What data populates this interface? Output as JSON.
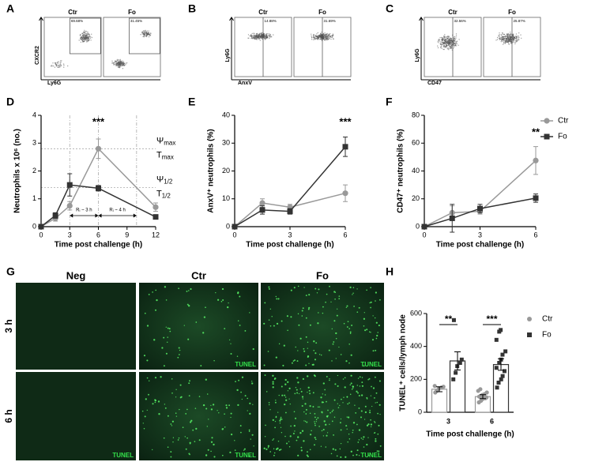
{
  "panel_labels": [
    "A",
    "B",
    "C",
    "D",
    "E",
    "F",
    "G",
    "H"
  ],
  "flow_panels": [
    {
      "groups": [
        "Ctr",
        "Fo"
      ],
      "gates": [
        "69.68%",
        "31.45%"
      ],
      "y_label": "CXCR2",
      "x_label": "Ly6G"
    },
    {
      "groups": [
        "Ctr",
        "Fo"
      ],
      "gates": [
        "14.88%",
        "31.69%"
      ],
      "y_label": "Ly6G",
      "x_label": "AnxV"
    },
    {
      "groups": [
        "Ctr",
        "Fo"
      ],
      "gates": [
        "32.56%",
        "25.87%"
      ],
      "y_label": "Ly6G",
      "x_label": "CD47"
    }
  ],
  "micrographs": {
    "columns": [
      "Neg",
      "Ctr",
      "Fo"
    ],
    "rows": [
      {
        "name": "3 h",
        "tiles": [
          {},
          {
            "label": "TUNEL"
          },
          {
            "label": "TUNEL"
          }
        ]
      },
      {
        "name": "6 h",
        "tiles": [
          {
            "label": "TUNEL"
          },
          {
            "label": "TUNEL"
          },
          {
            "label": "TUNEL"
          }
        ]
      }
    ]
  },
  "chart_data": [
    {
      "type": "line",
      "y_label": "Neutrophils x 10⁶ (no.)",
      "x_label": "Time post challenge (h)",
      "xlim": [
        0,
        12
      ],
      "xticks": [
        0,
        3,
        6,
        9,
        12
      ],
      "ylim": [
        0,
        4
      ],
      "yticks": [
        0,
        1,
        2,
        3,
        4
      ],
      "series": [
        {
          "color": "#999999",
          "marker": "circle",
          "x": [
            0,
            1.5,
            3,
            6,
            12
          ],
          "values": [
            0,
            0.3,
            0.75,
            2.8,
            0.7
          ],
          "errors": [
            0,
            0.1,
            0.15,
            0.35,
            0.15
          ]
        },
        {
          "color": "#333333",
          "marker": "square",
          "x": [
            0,
            1.5,
            3,
            6,
            12
          ],
          "values": [
            0,
            0.4,
            1.5,
            1.38,
            0.35
          ],
          "errors": [
            0,
            0.1,
            0.4,
            0.1,
            0.05
          ]
        }
      ],
      "annotation": "***",
      "ref_y": [
        2.8,
        1.4
      ],
      "ref_x": [
        3,
        6,
        10
      ],
      "ref_labels": [
        {
          "symbol": "Ψ",
          "sub": "max"
        },
        {
          "symbol": "T",
          "sub": "max"
        },
        {
          "symbol": "Ψ",
          "sub": "1/2"
        },
        {
          "symbol": "T",
          "sub": "1/2"
        }
      ],
      "intervals": [
        {
          "from": 3,
          "to": 6,
          "label": "Rᵢ ~ 3 h"
        },
        {
          "from": 6,
          "to": 10,
          "label": "Rᵢ ~ 4 h"
        }
      ]
    },
    {
      "type": "line",
      "y_label": "AnxV⁺ neutrophils (%)",
      "x_label": "Time post challenge (h)",
      "xlim": [
        0,
        6
      ],
      "xticks": [
        0,
        3,
        6
      ],
      "ylim": [
        0,
        40
      ],
      "yticks": [
        0,
        10,
        20,
        30,
        40
      ],
      "series": [
        {
          "color": "#999999",
          "marker": "circle",
          "x": [
            0,
            1.5,
            3,
            6
          ],
          "values": [
            0,
            8.5,
            7,
            12
          ],
          "errors": [
            0,
            1.5,
            1,
            3
          ]
        },
        {
          "color": "#333333",
          "marker": "square",
          "x": [
            0,
            1.5,
            3,
            6
          ],
          "values": [
            0,
            6,
            5.5,
            28.7
          ],
          "errors": [
            0,
            1.5,
            1,
            3.5
          ]
        }
      ],
      "annotation": "***"
    },
    {
      "type": "line",
      "y_label": "CD47⁺ neutrophils (%)",
      "x_label": "Time post challenge (h)",
      "xlim": [
        0,
        6
      ],
      "xticks": [
        0,
        3,
        6
      ],
      "ylim": [
        0,
        80
      ],
      "yticks": [
        0,
        20,
        40,
        60,
        80
      ],
      "series": [
        {
          "name": "Ctr",
          "color": "#999999",
          "marker": "circle",
          "x": [
            0,
            1.5,
            3,
            6
          ],
          "values": [
            0,
            10,
            11,
            47.5
          ],
          "errors": [
            0,
            5,
            2,
            10
          ]
        },
        {
          "name": "Fo",
          "color": "#333333",
          "marker": "square",
          "x": [
            0,
            1.5,
            3,
            6
          ],
          "values": [
            0,
            6,
            13,
            20.5
          ],
          "errors": [
            0,
            10,
            3,
            3
          ]
        }
      ],
      "annotation": "**"
    },
    {
      "type": "bar_scatter",
      "y_label": "TUNEL⁺ cells/lymph node",
      "x_label": "Time post challenge (h)",
      "categories": [
        "3",
        "6"
      ],
      "ylim": [
        0,
        600
      ],
      "yticks": [
        0,
        200,
        400,
        600
      ],
      "series": [
        {
          "name": "Ctr",
          "color": "#999999",
          "marker": "circle",
          "values": [
            140,
            95
          ],
          "errors": [
            15,
            12
          ],
          "points": [
            [
              120,
              130,
              145,
              150,
              155,
              160
            ],
            [
              60,
              70,
              80,
              85,
              90,
              95,
              100,
              105,
              110,
              120,
              130,
              140
            ]
          ]
        },
        {
          "name": "Fo",
          "color": "#333333",
          "marker": "square",
          "values": [
            312,
            290
          ],
          "errors": [
            55,
            35
          ],
          "points": [
            [
              200,
              240,
              280,
              300,
              320,
              560
            ],
            [
              150,
              180,
              200,
              220,
              250,
              270,
              300,
              320,
              350,
              370,
              440,
              490,
              500
            ]
          ]
        }
      ],
      "significance": [
        "**",
        "***"
      ]
    }
  ]
}
